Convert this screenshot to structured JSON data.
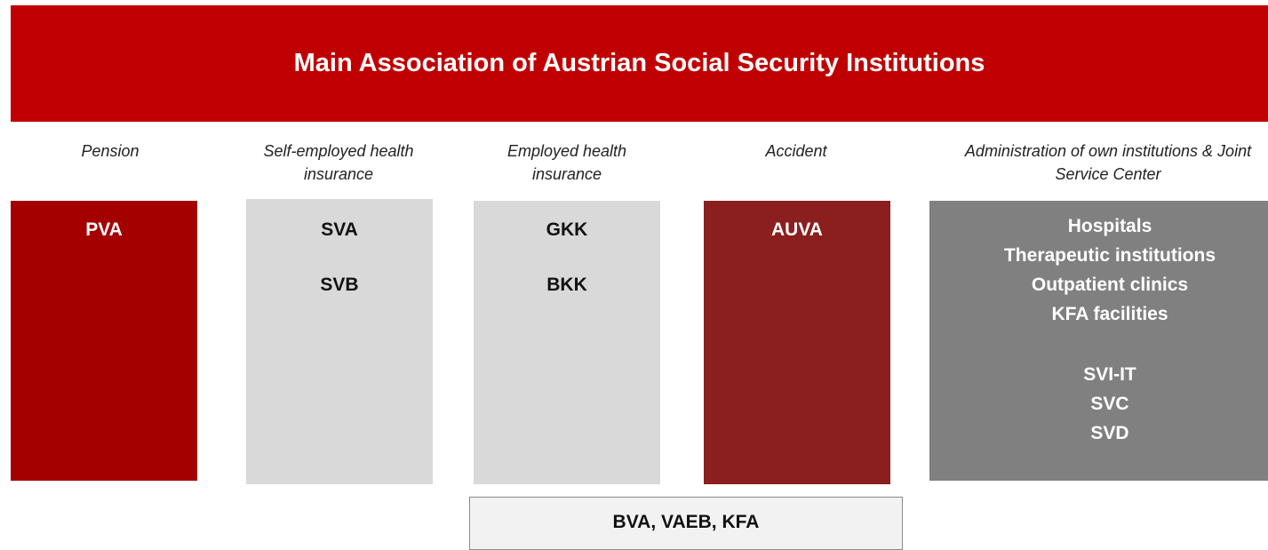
{
  "title": "Main Association of Austrian Social Security Institutions",
  "columns": [
    {
      "label": [
        "Pension"
      ],
      "groups": [
        [
          "PVA"
        ]
      ]
    },
    {
      "label": [
        "Self-employed health",
        "insurance"
      ],
      "groups": [
        [
          "SVA"
        ],
        [
          "SVB"
        ]
      ]
    },
    {
      "label": [
        "Employed health",
        "insurance"
      ],
      "groups": [
        [
          "GKK"
        ],
        [
          "BKK"
        ]
      ]
    },
    {
      "label": [
        "Accident"
      ],
      "groups": [
        [
          "AUVA"
        ]
      ]
    },
    {
      "label": [
        "Administration of own institutions & Joint",
        "Service Center"
      ],
      "groups": [
        [
          "Hospitals",
          "Therapeutic institutions",
          "Outpatient clinics",
          "KFA facilities"
        ],
        [
          "SVI-IT",
          "SVC",
          "SVD"
        ]
      ]
    }
  ],
  "footer": "BVA, VAEB, KFA"
}
